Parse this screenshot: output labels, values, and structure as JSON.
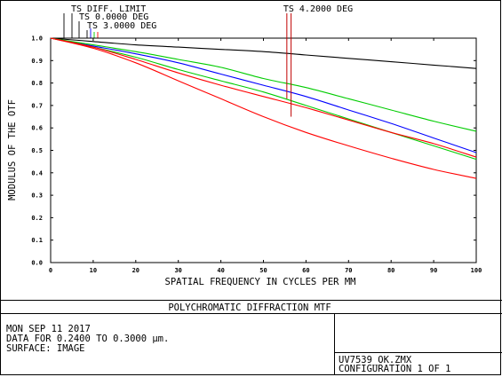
{
  "chart_data": {
    "type": "line",
    "title": "POLYCHROMATIC DIFFRACTION MTF",
    "xlabel": "SPATIAL FREQUENCY IN CYCLES PER MM",
    "ylabel": "MODULUS OF THE OTF",
    "xlim": [
      0,
      100
    ],
    "ylim": [
      0.0,
      1.0
    ],
    "grid": false,
    "x_ticks": [
      "0",
      "10",
      "20",
      "30",
      "40",
      "50",
      "60",
      "70",
      "80",
      "90",
      "100"
    ],
    "y_ticks": [
      "0.0",
      "0.1",
      "0.2",
      "0.3",
      "0.4",
      "0.5",
      "0.6",
      "0.7",
      "0.8",
      "0.9",
      "1.0"
    ],
    "legend": [
      {
        "label": "TS DIFF. LIMIT",
        "color": "#000000"
      },
      {
        "label": "TS 0.0000 DEG",
        "color": "#0000ff"
      },
      {
        "label": "TS 3.0000 DEG",
        "color": "#00cc00"
      },
      {
        "label": "TS 4.2000 DEG",
        "color": "#ff0000"
      }
    ],
    "x": [
      0,
      10,
      20,
      30,
      40,
      50,
      60,
      70,
      80,
      90,
      100
    ],
    "series": [
      {
        "color": "#000000",
        "values": [
          1.0,
          0.985,
          0.97,
          0.96,
          0.95,
          0.94,
          0.925,
          0.91,
          0.895,
          0.88,
          0.865
        ]
      },
      {
        "color": "#0000ff",
        "values": [
          1.0,
          0.965,
          0.93,
          0.89,
          0.84,
          0.79,
          0.74,
          0.68,
          0.62,
          0.555,
          0.49
        ]
      },
      {
        "color": "#00cc00",
        "values": [
          1.0,
          0.97,
          0.94,
          0.905,
          0.87,
          0.82,
          0.78,
          0.73,
          0.68,
          0.63,
          0.585
        ]
      },
      {
        "color": "#00cc00",
        "values": [
          1.0,
          0.96,
          0.915,
          0.86,
          0.81,
          0.76,
          0.7,
          0.64,
          0.58,
          0.52,
          0.46
        ]
      },
      {
        "color": "#ff0000",
        "values": [
          1.0,
          0.96,
          0.905,
          0.845,
          0.79,
          0.74,
          0.69,
          0.635,
          0.58,
          0.53,
          0.47
        ]
      },
      {
        "color": "#ff0000",
        "values": [
          1.0,
          0.955,
          0.89,
          0.81,
          0.73,
          0.65,
          0.58,
          0.52,
          0.465,
          0.415,
          0.375
        ]
      }
    ],
    "annotations": [
      {
        "label": "TS 4.2000 DEG",
        "x": [
          55.5,
          56.5
        ]
      }
    ]
  },
  "footer": {
    "line1": "MON SEP 11 2017",
    "line2": "DATA FOR 0.2400 TO 0.3000 μm.",
    "line3": "SURFACE: IMAGE",
    "file": "UV7539_OK.ZMX",
    "config": "CONFIGURATION 1 OF 1"
  }
}
